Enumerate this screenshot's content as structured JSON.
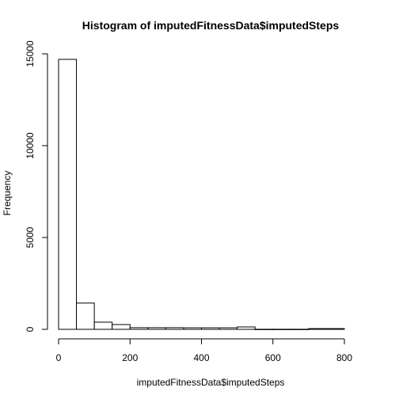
{
  "chart_data": {
    "type": "bar",
    "title": "Histogram of imputedFitnessData$imputedSteps",
    "xlabel": "imputedFitnessData$imputedSteps",
    "ylabel": "Frequency",
    "bin_width": 50,
    "bins": [
      {
        "start": 0,
        "end": 50,
        "count": 14700
      },
      {
        "start": 50,
        "end": 100,
        "count": 1430
      },
      {
        "start": 100,
        "end": 150,
        "count": 390
      },
      {
        "start": 150,
        "end": 200,
        "count": 260
      },
      {
        "start": 200,
        "end": 250,
        "count": 90
      },
      {
        "start": 250,
        "end": 300,
        "count": 90
      },
      {
        "start": 300,
        "end": 350,
        "count": 90
      },
      {
        "start": 350,
        "end": 400,
        "count": 85
      },
      {
        "start": 400,
        "end": 450,
        "count": 85
      },
      {
        "start": 450,
        "end": 500,
        "count": 85
      },
      {
        "start": 500,
        "end": 550,
        "count": 130
      },
      {
        "start": 550,
        "end": 600,
        "count": 5
      },
      {
        "start": 600,
        "end": 650,
        "count": 5
      },
      {
        "start": 650,
        "end": 700,
        "count": 5
      },
      {
        "start": 700,
        "end": 750,
        "count": 40
      },
      {
        "start": 750,
        "end": 800,
        "count": 40
      }
    ],
    "xlim": [
      0,
      800
    ],
    "ylim": [
      0,
      15000
    ],
    "xticks": [
      0,
      200,
      400,
      600,
      800
    ],
    "yticks": [
      0,
      5000,
      10000,
      15000
    ],
    "grid": false,
    "legend": "none",
    "colors": {
      "bar_fill": "#ffffff",
      "bar_stroke": "#000000"
    }
  }
}
